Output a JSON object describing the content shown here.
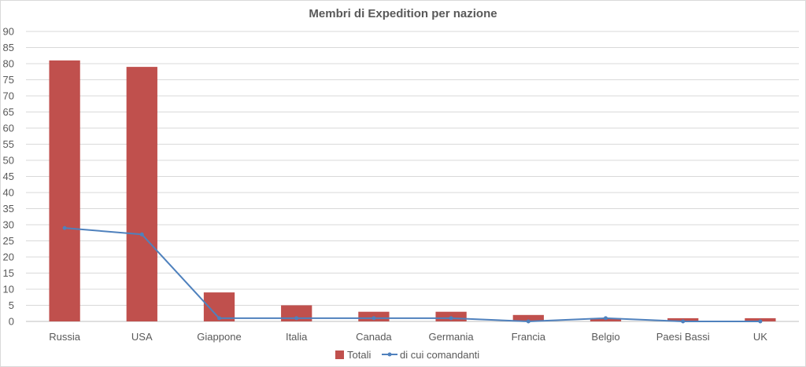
{
  "chart_data": {
    "type": "bar",
    "title": "Membri di Expedition per nazione",
    "xlabel": "",
    "ylabel": "",
    "categories": [
      "Russia",
      "USA",
      "Giappone",
      "Italia",
      "Canada",
      "Germania",
      "Francia",
      "Belgio",
      "Paesi Bassi",
      "UK"
    ],
    "series": [
      {
        "name": "Totali",
        "type": "bar",
        "color": "#c0504d",
        "values": [
          81,
          79,
          9,
          5,
          3,
          3,
          2,
          1,
          1,
          1
        ]
      },
      {
        "name": "di cui comandanti",
        "type": "line",
        "color": "#4f81bd",
        "values": [
          29,
          27,
          1,
          1,
          1,
          1,
          0,
          1,
          0,
          0
        ]
      }
    ],
    "ylim": [
      0,
      90
    ],
    "yticks": [
      0,
      5,
      10,
      15,
      20,
      25,
      30,
      35,
      40,
      45,
      50,
      55,
      60,
      65,
      70,
      75,
      80,
      85,
      90
    ],
    "grid": true,
    "legend_position": "bottom"
  }
}
